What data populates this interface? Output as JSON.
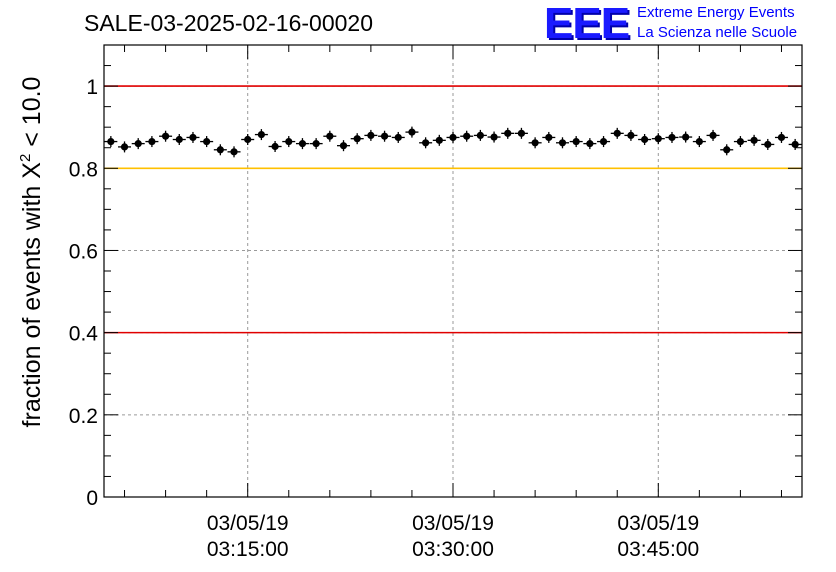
{
  "chart_data": {
    "type": "scatter",
    "title": "SALE-03-2025-02-16-00020",
    "ylabel": "fraction of events with X² < 10.0",
    "ylabel_main": "fraction of events with X",
    "ylabel_sup": "2",
    "ylabel_tail": " < 10.0",
    "ylim": [
      0,
      1.1
    ],
    "yticks": [
      0,
      0.2,
      0.4,
      0.6,
      0.8,
      1
    ],
    "ytick_labels": [
      "0",
      "0.2",
      "0.4",
      "0.6",
      "0.8",
      "1"
    ],
    "xlim_minutes": [
      0,
      51
    ],
    "xticks": [
      {
        "minute": 10.5,
        "date": "03/05/19",
        "time": "03:15:00"
      },
      {
        "minute": 25.5,
        "date": "03/05/19",
        "time": "03:30:00"
      },
      {
        "minute": 40.5,
        "date": "03/05/19",
        "time": "03:45:00"
      }
    ],
    "grid": true,
    "reference_lines": [
      {
        "y": 1.0,
        "color": "#e00000"
      },
      {
        "y": 0.8,
        "color": "#ffc000"
      },
      {
        "y": 0.4,
        "color": "#e00000"
      }
    ],
    "series": [
      {
        "name": "fraction",
        "x_minutes": [
          0.5,
          1.5,
          2.5,
          3.5,
          4.5,
          5.5,
          6.5,
          7.5,
          8.5,
          9.5,
          10.5,
          11.5,
          12.5,
          13.5,
          14.5,
          15.5,
          16.5,
          17.5,
          18.5,
          19.5,
          20.5,
          21.5,
          22.5,
          23.5,
          24.5,
          25.5,
          26.5,
          27.5,
          28.5,
          29.5,
          30.5,
          31.5,
          32.5,
          33.5,
          34.5,
          35.5,
          36.5,
          37.5,
          38.5,
          39.5,
          40.5,
          41.5,
          42.5,
          43.5,
          44.5,
          45.5,
          46.5,
          47.5,
          48.5,
          49.5,
          50.5
        ],
        "values": [
          0.865,
          0.852,
          0.86,
          0.865,
          0.878,
          0.87,
          0.875,
          0.865,
          0.845,
          0.84,
          0.87,
          0.882,
          0.853,
          0.865,
          0.86,
          0.86,
          0.878,
          0.855,
          0.872,
          0.88,
          0.878,
          0.875,
          0.888,
          0.862,
          0.868,
          0.875,
          0.878,
          0.88,
          0.876,
          0.885,
          0.885,
          0.862,
          0.875,
          0.862,
          0.865,
          0.86,
          0.865,
          0.885,
          0.88,
          0.87,
          0.872,
          0.875,
          0.876,
          0.865,
          0.88,
          0.845,
          0.865,
          0.868,
          0.858,
          0.875,
          0.858
        ],
        "color": "#000000"
      }
    ]
  },
  "logo": {
    "mark": "EEE",
    "line1": "Extreme Energy Events",
    "line2": "La Scienza nelle Scuole",
    "color": "#0000ff"
  }
}
